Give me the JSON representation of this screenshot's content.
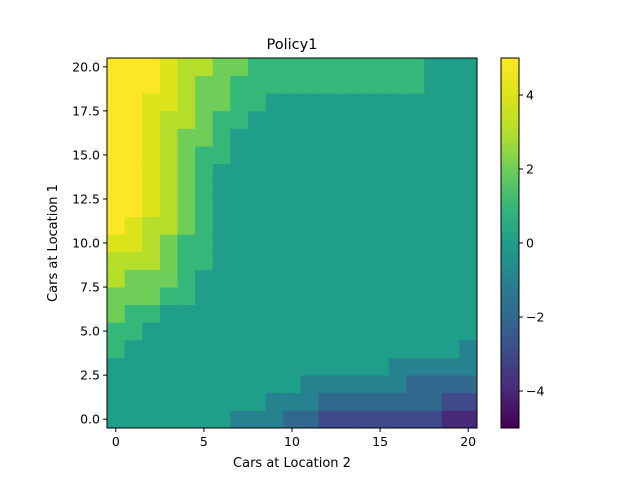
{
  "chart_data": {
    "type": "heatmap",
    "title": "Policy1",
    "xlabel": "Cars at Location 2",
    "ylabel": "Cars at Location 1",
    "x_range": [
      -0.5,
      20.5
    ],
    "y_range": [
      -0.5,
      20.5
    ],
    "x_ticks": [
      0,
      5,
      10,
      15,
      20
    ],
    "x_tick_labels": [
      "0",
      "5",
      "10",
      "15",
      "20"
    ],
    "y_ticks": [
      0.0,
      2.5,
      5.0,
      7.5,
      10.0,
      12.5,
      15.0,
      17.5,
      20.0
    ],
    "y_tick_labels": [
      "0.0",
      "2.5",
      "5.0",
      "7.5",
      "10.0",
      "12.5",
      "15.0",
      "17.5",
      "20.0"
    ],
    "colorbar": {
      "colormap": "viridis",
      "vmin": -5,
      "vmax": 5,
      "ticks": [
        4,
        2,
        0,
        -2,
        -4
      ],
      "tick_labels": [
        "4",
        "2",
        "0",
        "−2",
        "−4"
      ]
    },
    "grid": false,
    "rows_from_y0": [
      [
        0,
        0,
        0,
        0,
        0,
        0,
        0,
        -1,
        -1,
        -1,
        -2,
        -2,
        -3,
        -3,
        -3,
        -3,
        -3,
        -3,
        -3,
        -4,
        -4
      ],
      [
        0,
        0,
        0,
        0,
        0,
        0,
        0,
        0,
        0,
        -1,
        -1,
        -1,
        -2,
        -2,
        -2,
        -2,
        -2,
        -2,
        -2,
        -3,
        -3
      ],
      [
        0,
        0,
        0,
        0,
        0,
        0,
        0,
        0,
        0,
        0,
        0,
        -1,
        -1,
        -1,
        -1,
        -1,
        -1,
        -2,
        -2,
        -2,
        -2
      ],
      [
        0,
        0,
        0,
        0,
        0,
        0,
        0,
        0,
        0,
        0,
        0,
        0,
        0,
        0,
        0,
        0,
        -1,
        -1,
        -1,
        -1,
        -1
      ],
      [
        1,
        0,
        0,
        0,
        0,
        0,
        0,
        0,
        0,
        0,
        0,
        0,
        0,
        0,
        0,
        0,
        0,
        0,
        0,
        0,
        -1
      ],
      [
        1,
        1,
        0,
        0,
        0,
        0,
        0,
        0,
        0,
        0,
        0,
        0,
        0,
        0,
        0,
        0,
        0,
        0,
        0,
        0,
        0
      ],
      [
        2,
        1,
        1,
        0,
        0,
        0,
        0,
        0,
        0,
        0,
        0,
        0,
        0,
        0,
        0,
        0,
        0,
        0,
        0,
        0,
        0
      ],
      [
        2,
        2,
        2,
        1,
        1,
        0,
        0,
        0,
        0,
        0,
        0,
        0,
        0,
        0,
        0,
        0,
        0,
        0,
        0,
        0,
        0
      ],
      [
        3,
        2,
        2,
        2,
        1,
        0,
        0,
        0,
        0,
        0,
        0,
        0,
        0,
        0,
        0,
        0,
        0,
        0,
        0,
        0,
        0
      ],
      [
        3,
        3,
        3,
        2,
        1,
        1,
        0,
        0,
        0,
        0,
        0,
        0,
        0,
        0,
        0,
        0,
        0,
        0,
        0,
        0,
        0
      ],
      [
        4,
        4,
        3,
        2,
        1,
        1,
        0,
        0,
        0,
        0,
        0,
        0,
        0,
        0,
        0,
        0,
        0,
        0,
        0,
        0,
        0
      ],
      [
        5,
        4,
        3,
        3,
        2,
        1,
        0,
        0,
        0,
        0,
        0,
        0,
        0,
        0,
        0,
        0,
        0,
        0,
        0,
        0,
        0
      ],
      [
        5,
        5,
        4,
        3,
        2,
        1,
        0,
        0,
        0,
        0,
        0,
        0,
        0,
        0,
        0,
        0,
        0,
        0,
        0,
        0,
        0
      ],
      [
        5,
        5,
        4,
        3,
        2,
        1,
        0,
        0,
        0,
        0,
        0,
        0,
        0,
        0,
        0,
        0,
        0,
        0,
        0,
        0,
        0
      ],
      [
        5,
        5,
        4,
        3,
        2,
        1,
        0,
        0,
        0,
        0,
        0,
        0,
        0,
        0,
        0,
        0,
        0,
        0,
        0,
        0,
        0
      ],
      [
        5,
        5,
        4,
        3,
        2,
        1,
        1,
        0,
        0,
        0,
        0,
        0,
        0,
        0,
        0,
        0,
        0,
        0,
        0,
        0,
        0
      ],
      [
        5,
        5,
        4,
        3,
        2,
        2,
        1,
        0,
        0,
        0,
        0,
        0,
        0,
        0,
        0,
        0,
        0,
        0,
        0,
        0,
        0
      ],
      [
        5,
        5,
        4,
        3,
        3,
        2,
        1,
        1,
        0,
        0,
        0,
        0,
        0,
        0,
        0,
        0,
        0,
        0,
        0,
        0,
        0
      ],
      [
        5,
        5,
        4,
        4,
        3,
        2,
        2,
        1,
        1,
        0,
        0,
        0,
        0,
        0,
        0,
        0,
        0,
        0,
        0,
        0,
        0
      ],
      [
        5,
        5,
        5,
        4,
        3,
        2,
        2,
        1,
        1,
        1,
        1,
        1,
        1,
        1,
        1,
        1,
        1,
        1,
        0,
        0,
        0
      ],
      [
        5,
        5,
        5,
        4,
        3,
        3,
        2,
        2,
        1,
        1,
        1,
        1,
        1,
        1,
        1,
        1,
        1,
        1,
        0,
        0,
        0
      ]
    ]
  }
}
